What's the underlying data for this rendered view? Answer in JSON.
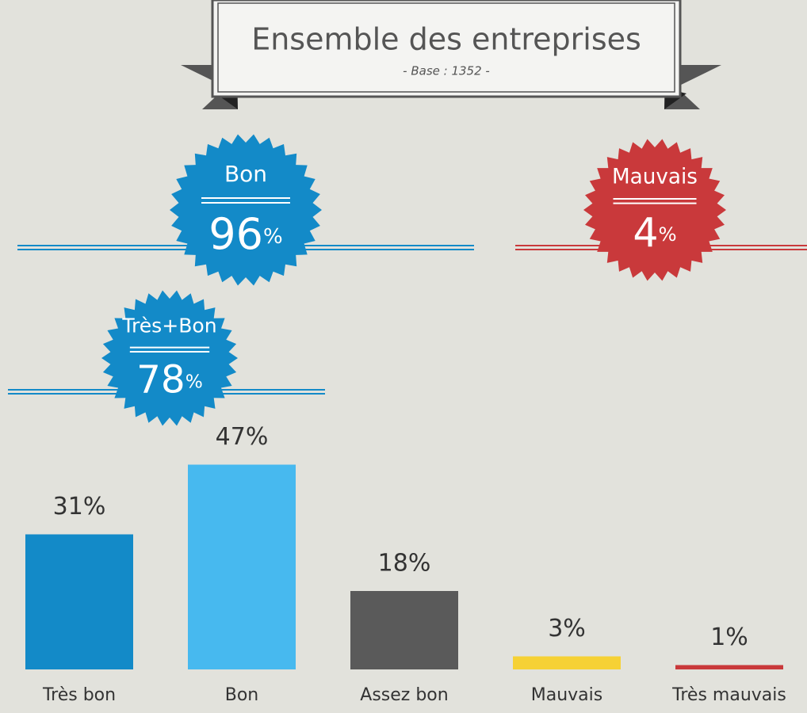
{
  "chart_data": {
    "type": "bar",
    "title": "Ensemble des entreprises",
    "subtitle": "- Base : 1352 -",
    "badges": [
      {
        "label": "Bon",
        "value": 96,
        "unit": "%",
        "color": "#138ac8"
      },
      {
        "label": "Mauvais",
        "value": 4,
        "unit": "%",
        "color": "#c9393b"
      },
      {
        "label": "Très+Bon",
        "value": 78,
        "unit": "%",
        "color": "#138ac8"
      }
    ],
    "categories": [
      "Très bon",
      "Bon",
      "Assez bon",
      "Mauvais",
      "Très mauvais"
    ],
    "values": [
      31,
      47,
      18,
      3,
      1
    ],
    "value_labels": [
      "31%",
      "47%",
      "18%",
      "3%",
      "1%"
    ],
    "colors": [
      "#138ac8",
      "#47b9ef",
      "#5a5a5a",
      "#f6d135",
      "#c9393b"
    ]
  }
}
